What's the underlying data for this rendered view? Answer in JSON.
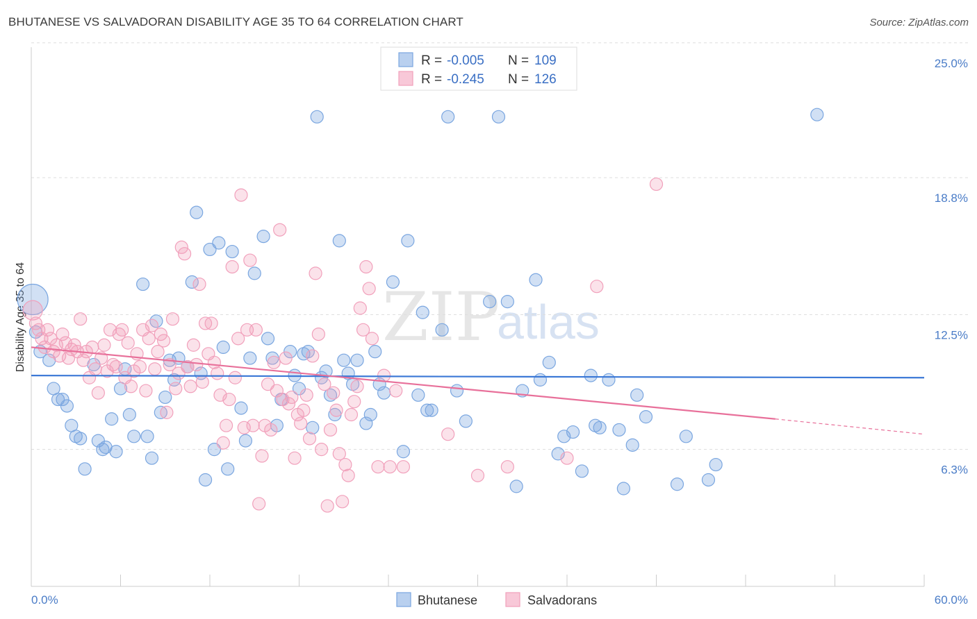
{
  "title": "BHUTANESE VS SALVADORAN DISABILITY AGE 35 TO 64 CORRELATION CHART",
  "source": "Source: ZipAtlas.com",
  "watermark": {
    "zip": "ZIP",
    "atlas": "atlas"
  },
  "colors": {
    "blue": "#7aa6e0",
    "blue_line": "#3b78d6",
    "pink": "#f1a0bb",
    "pink_line": "#e8709a",
    "grid": "#dddddd",
    "label": "#4a7cc7"
  },
  "legend": {
    "rows": [
      {
        "r_label": "R = ",
        "r_value": "-0.005",
        "n_label": "N = ",
        "n_value": "109"
      },
      {
        "r_label": "R = ",
        "r_value": "-0.245",
        "n_label": "N = ",
        "n_value": "126"
      }
    ]
  },
  "bottom_legend": [
    "Bhutanese",
    "Salvadorans"
  ],
  "chart_data": {
    "type": "scatter",
    "title": "BHUTANESE VS SALVADORAN DISABILITY AGE 35 TO 64 CORRELATION CHART",
    "ylabel": "Disability Age 35 to 64",
    "xlabel": "",
    "xlim": [
      0,
      60
    ],
    "ylim": [
      0,
      25.6
    ],
    "x_tick_labels": [
      "0.0%",
      "60.0%"
    ],
    "y_ticks": [
      6.3,
      12.5,
      18.8,
      25.0
    ],
    "y_tick_labels": [
      "6.3%",
      "12.5%",
      "18.8%",
      "25.0%"
    ],
    "grid": true,
    "legend_placement": "top-center",
    "series": [
      {
        "name": "Bhutanese",
        "color": "#7aa6e0",
        "trend": {
          "x": [
            0,
            60
          ],
          "y": [
            9.7,
            9.6
          ]
        },
        "points": [
          [
            0.1,
            13.2
          ],
          [
            0.3,
            11.7
          ],
          [
            0.6,
            10.8
          ],
          [
            1.2,
            10.4
          ],
          [
            1.5,
            9.1
          ],
          [
            1.8,
            8.6
          ],
          [
            2.1,
            8.6
          ],
          [
            2.4,
            8.3
          ],
          [
            2.7,
            7.4
          ],
          [
            3.0,
            6.9
          ],
          [
            3.3,
            6.8
          ],
          [
            3.6,
            5.4
          ],
          [
            4.2,
            10.2
          ],
          [
            4.5,
            6.7
          ],
          [
            4.8,
            6.3
          ],
          [
            5.0,
            6.4
          ],
          [
            5.4,
            7.7
          ],
          [
            5.7,
            6.2
          ],
          [
            6.0,
            9.1
          ],
          [
            6.3,
            10.0
          ],
          [
            6.6,
            7.9
          ],
          [
            6.9,
            6.9
          ],
          [
            7.5,
            13.9
          ],
          [
            7.8,
            6.9
          ],
          [
            8.1,
            5.9
          ],
          [
            8.4,
            12.2
          ],
          [
            8.7,
            8.0
          ],
          [
            9.0,
            8.7
          ],
          [
            9.3,
            10.4
          ],
          [
            9.6,
            9.5
          ],
          [
            9.9,
            10.5
          ],
          [
            10.5,
            10.1
          ],
          [
            10.8,
            14.0
          ],
          [
            11.1,
            17.2
          ],
          [
            11.4,
            9.8
          ],
          [
            11.7,
            4.9
          ],
          [
            12.0,
            15.5
          ],
          [
            12.3,
            6.3
          ],
          [
            12.6,
            15.8
          ],
          [
            12.9,
            11.0
          ],
          [
            13.2,
            5.4
          ],
          [
            13.5,
            15.4
          ],
          [
            14.1,
            8.2
          ],
          [
            14.4,
            6.7
          ],
          [
            14.7,
            10.5
          ],
          [
            15.0,
            14.4
          ],
          [
            15.6,
            16.1
          ],
          [
            15.9,
            11.4
          ],
          [
            16.2,
            10.5
          ],
          [
            16.5,
            7.4
          ],
          [
            16.8,
            8.6
          ],
          [
            17.4,
            10.8
          ],
          [
            17.7,
            9.7
          ],
          [
            18.0,
            9.1
          ],
          [
            18.3,
            10.7
          ],
          [
            18.6,
            10.8
          ],
          [
            18.9,
            7.3
          ],
          [
            19.2,
            21.6
          ],
          [
            19.5,
            9.6
          ],
          [
            19.8,
            9.9
          ],
          [
            20.1,
            8.8
          ],
          [
            20.4,
            7.9
          ],
          [
            20.7,
            15.9
          ],
          [
            21.0,
            10.4
          ],
          [
            21.3,
            9.8
          ],
          [
            21.6,
            9.3
          ],
          [
            21.9,
            10.4
          ],
          [
            22.5,
            7.5
          ],
          [
            22.8,
            7.9
          ],
          [
            23.1,
            10.8
          ],
          [
            23.4,
            9.3
          ],
          [
            23.7,
            8.9
          ],
          [
            24.3,
            14.0
          ],
          [
            25.0,
            6.2
          ],
          [
            25.3,
            15.9
          ],
          [
            26.0,
            8.8
          ],
          [
            26.3,
            12.6
          ],
          [
            26.6,
            8.1
          ],
          [
            26.9,
            8.1
          ],
          [
            27.6,
            11.8
          ],
          [
            28.0,
            21.6
          ],
          [
            28.6,
            9.0
          ],
          [
            29.2,
            7.6
          ],
          [
            30.8,
            13.1
          ],
          [
            31.4,
            21.6
          ],
          [
            32.0,
            13.1
          ],
          [
            32.6,
            4.6
          ],
          [
            33.0,
            9.0
          ],
          [
            33.9,
            14.1
          ],
          [
            34.2,
            9.5
          ],
          [
            34.8,
            10.3
          ],
          [
            35.4,
            6.1
          ],
          [
            35.8,
            6.9
          ],
          [
            36.4,
            7.1
          ],
          [
            37.0,
            5.3
          ],
          [
            37.6,
            9.7
          ],
          [
            37.9,
            7.4
          ],
          [
            38.2,
            7.3
          ],
          [
            38.8,
            9.5
          ],
          [
            39.5,
            7.2
          ],
          [
            39.8,
            4.5
          ],
          [
            40.4,
            6.5
          ],
          [
            40.7,
            8.8
          ],
          [
            41.3,
            7.8
          ],
          [
            43.4,
            4.7
          ],
          [
            44.0,
            6.9
          ],
          [
            45.5,
            4.9
          ],
          [
            52.8,
            21.7
          ],
          [
            46.0,
            5.6
          ]
        ]
      },
      {
        "name": "Salvadorans",
        "color": "#f1a0bb",
        "trend": {
          "x": [
            0,
            50
          ],
          "y": [
            11.0,
            7.7
          ]
        },
        "trend_dashed": {
          "x": [
            50,
            60
          ],
          "y": [
            7.7,
            7.0
          ]
        },
        "points": [
          [
            0.1,
            12.7
          ],
          [
            0.3,
            12.1
          ],
          [
            0.5,
            11.8
          ],
          [
            0.7,
            11.4
          ],
          [
            0.9,
            11.0
          ],
          [
            1.1,
            11.8
          ],
          [
            1.3,
            11.4
          ],
          [
            1.5,
            10.8
          ],
          [
            1.7,
            11.1
          ],
          [
            1.9,
            10.6
          ],
          [
            2.1,
            11.6
          ],
          [
            2.3,
            11.2
          ],
          [
            2.5,
            10.5
          ],
          [
            2.7,
            10.9
          ],
          [
            2.9,
            11.1
          ],
          [
            3.1,
            10.8
          ],
          [
            3.3,
            12.3
          ],
          [
            3.5,
            10.4
          ],
          [
            3.7,
            10.8
          ],
          [
            3.9,
            9.6
          ],
          [
            4.1,
            11.0
          ],
          [
            4.3,
            10.0
          ],
          [
            4.5,
            8.9
          ],
          [
            4.7,
            10.5
          ],
          [
            4.9,
            11.1
          ],
          [
            5.1,
            9.9
          ],
          [
            5.3,
            11.8
          ],
          [
            5.5,
            10.2
          ],
          [
            5.7,
            10.1
          ],
          [
            5.9,
            11.6
          ],
          [
            6.1,
            11.8
          ],
          [
            6.3,
            9.6
          ],
          [
            6.5,
            11.2
          ],
          [
            6.7,
            9.2
          ],
          [
            6.9,
            9.9
          ],
          [
            7.1,
            10.7
          ],
          [
            7.3,
            10.1
          ],
          [
            7.5,
            11.8
          ],
          [
            7.7,
            9.0
          ],
          [
            7.9,
            11.4
          ],
          [
            8.1,
            12.0
          ],
          [
            8.3,
            10.0
          ],
          [
            8.5,
            10.8
          ],
          [
            8.7,
            11.6
          ],
          [
            8.9,
            11.3
          ],
          [
            9.1,
            8.0
          ],
          [
            9.3,
            10.2
          ],
          [
            9.5,
            12.3
          ],
          [
            9.7,
            9.1
          ],
          [
            9.9,
            9.8
          ],
          [
            10.1,
            15.6
          ],
          [
            10.3,
            15.3
          ],
          [
            10.5,
            10.1
          ],
          [
            10.7,
            9.2
          ],
          [
            10.9,
            11.1
          ],
          [
            11.1,
            10.2
          ],
          [
            11.3,
            13.9
          ],
          [
            11.5,
            9.4
          ],
          [
            11.7,
            12.1
          ],
          [
            11.9,
            10.7
          ],
          [
            12.1,
            12.1
          ],
          [
            12.3,
            10.3
          ],
          [
            12.5,
            9.8
          ],
          [
            12.7,
            8.8
          ],
          [
            12.9,
            6.6
          ],
          [
            13.1,
            7.4
          ],
          [
            13.3,
            8.6
          ],
          [
            13.5,
            14.7
          ],
          [
            13.7,
            9.6
          ],
          [
            13.9,
            11.4
          ],
          [
            14.1,
            18.0
          ],
          [
            14.3,
            7.3
          ],
          [
            14.5,
            11.8
          ],
          [
            14.7,
            15.0
          ],
          [
            14.9,
            7.4
          ],
          [
            15.1,
            11.8
          ],
          [
            15.3,
            3.8
          ],
          [
            15.5,
            6.0
          ],
          [
            15.7,
            7.4
          ],
          [
            15.9,
            9.3
          ],
          [
            16.1,
            7.2
          ],
          [
            16.3,
            10.3
          ],
          [
            16.5,
            9.0
          ],
          [
            16.7,
            16.4
          ],
          [
            16.9,
            8.6
          ],
          [
            17.1,
            10.5
          ],
          [
            17.3,
            8.4
          ],
          [
            17.5,
            8.7
          ],
          [
            17.7,
            5.9
          ],
          [
            17.9,
            7.9
          ],
          [
            18.1,
            7.5
          ],
          [
            18.3,
            8.1
          ],
          [
            18.5,
            8.8
          ],
          [
            18.7,
            6.8
          ],
          [
            18.9,
            10.6
          ],
          [
            19.1,
            14.4
          ],
          [
            19.3,
            11.6
          ],
          [
            19.5,
            6.3
          ],
          [
            19.7,
            9.3
          ],
          [
            19.9,
            3.7
          ],
          [
            20.1,
            7.2
          ],
          [
            20.3,
            8.9
          ],
          [
            20.5,
            8.1
          ],
          [
            20.7,
            6.1
          ],
          [
            20.9,
            3.9
          ],
          [
            21.1,
            5.6
          ],
          [
            21.3,
            5.1
          ],
          [
            21.5,
            7.9
          ],
          [
            21.7,
            8.5
          ],
          [
            21.9,
            9.2
          ],
          [
            22.1,
            12.8
          ],
          [
            22.3,
            11.8
          ],
          [
            22.5,
            14.7
          ],
          [
            22.7,
            13.7
          ],
          [
            22.9,
            11.4
          ],
          [
            23.3,
            5.5
          ],
          [
            23.7,
            9.7
          ],
          [
            24.1,
            5.5
          ],
          [
            24.5,
            9.0
          ],
          [
            25.0,
            5.5
          ],
          [
            28.0,
            7.0
          ],
          [
            30.0,
            5.1
          ],
          [
            32.0,
            5.5
          ],
          [
            38.0,
            13.8
          ],
          [
            42.0,
            18.5
          ],
          [
            36.0,
            5.9
          ]
        ]
      }
    ]
  }
}
